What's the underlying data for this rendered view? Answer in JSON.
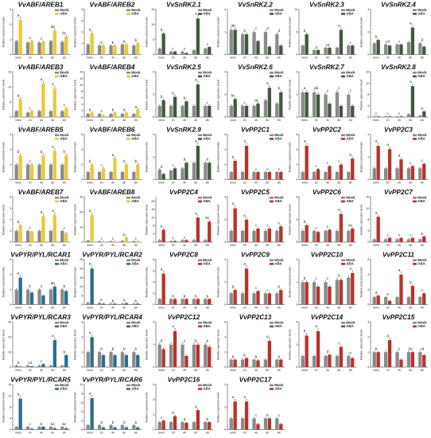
{
  "figure": {
    "y_axis_label": "Relative expression levels",
    "x_ticks": [
      "0min",
      "2h",
      "4h",
      "6h",
      "8h"
    ],
    "legend": [
      "Mock",
      "ABA"
    ]
  },
  "colors": {
    "mock": "#8a8a8a",
    "aba_yellow": "#e9c93a",
    "aba_darkgreen": "#3f5a3c",
    "aba_red": "#b8322e",
    "aba_blue": "#2a6e8e"
  },
  "chart_data": [
    {
      "type": "bar",
      "title": "VvABF/AREB1",
      "aba_color": "aba_yellow",
      "ymax": 3,
      "ticks": [
        0,
        1,
        2,
        3
      ],
      "mock": [
        0.9,
        0.8,
        0.8,
        0.9,
        0.85
      ],
      "aba": [
        2.3,
        0.9,
        0.85,
        1.6,
        1.2
      ],
      "letters": [
        "a",
        "c",
        "c",
        "ab",
        "bc"
      ]
    },
    {
      "type": "bar",
      "title": "VvABF/AREB2",
      "aba_color": "aba_yellow",
      "ymax": 4,
      "ticks": [
        0,
        1,
        2,
        3,
        4
      ],
      "mock": [
        0.9,
        0.8,
        0.8,
        0.9,
        0.8
      ],
      "aba": [
        1.9,
        0.8,
        0.8,
        0.9,
        1.0
      ],
      "letters": [
        "a",
        "b",
        "b",
        "b",
        "b"
      ]
    },
    {
      "type": "bar",
      "title": "VvSnRK2.1",
      "aba_color": "aba_darkgreen",
      "ymax": 15,
      "ticks": [
        0,
        5,
        10,
        15
      ],
      "mock": [
        2.0,
        1.0,
        1.0,
        1.5,
        2.0
      ],
      "aba": [
        7.0,
        1.0,
        0.5,
        12.0,
        2.5
      ],
      "letters": [
        "b",
        "c",
        "c",
        "a",
        "c"
      ]
    },
    {
      "type": "bar",
      "title": "VvSnRK2.2",
      "aba_color": "aba_darkgreen",
      "ymax": 2,
      "ticks": [
        0,
        1,
        2
      ],
      "mock": [
        1.1,
        0.9,
        1.0,
        1.0,
        0.9
      ],
      "aba": [
        1.1,
        0.9,
        0.6,
        0.35,
        0.4
      ],
      "letters": [
        "ab",
        "b",
        "c",
        "d",
        "d"
      ]
    },
    {
      "type": "bar",
      "title": "VvSnRK2.3",
      "aba_color": "aba_darkgreen",
      "ymax": 10,
      "ticks": [
        0,
        5,
        10
      ],
      "mock": [
        2.0,
        1.0,
        1.5,
        1.5,
        2.0
      ],
      "aba": [
        4.5,
        1.0,
        1.5,
        5.5,
        2.0
      ],
      "letters": [
        "b",
        "d",
        "cd",
        "a",
        "c"
      ]
    },
    {
      "type": "bar",
      "title": "VvSnRK2.4",
      "aba_color": "aba_darkgreen",
      "ymax": 4,
      "ticks": [
        0,
        2,
        4
      ],
      "mock": [
        1.0,
        0.9,
        0.9,
        1.1,
        1.0
      ],
      "aba": [
        1.3,
        0.8,
        0.9,
        2.4,
        0.7
      ],
      "letters": [
        "b",
        "cd",
        "c",
        "a",
        "d"
      ]
    },
    {
      "type": "bar",
      "title": "VvABF/AREB3",
      "aba_color": "aba_yellow",
      "ymax": 15,
      "ticks": [
        0,
        5,
        10,
        15
      ],
      "mock": [
        2.0,
        1.5,
        2.0,
        2.0,
        2.0
      ],
      "aba": [
        6.0,
        2.0,
        11.0,
        9.5,
        3.0
      ],
      "letters": [
        "b",
        "c",
        "a",
        "a",
        "c"
      ]
    },
    {
      "type": "bar",
      "title": "VvABF/AREB4",
      "aba_color": "aba_yellow",
      "ymax": 14,
      "ticks": [
        0,
        2,
        4,
        6,
        8,
        10,
        12,
        14
      ],
      "mock": [
        1.0,
        1.0,
        1.0,
        1.0,
        1.0
      ],
      "aba": [
        1.4,
        0.5,
        1.4,
        1.4,
        2.4
      ],
      "letters": [
        "b",
        "c",
        "b",
        "b",
        "a"
      ]
    },
    {
      "type": "bar",
      "title": "VvSnRK2.5",
      "aba_color": "aba_darkgreen",
      "ymax": 4,
      "ticks": [
        0,
        2,
        4
      ],
      "mock": [
        1.0,
        1.0,
        1.0,
        1.0,
        1.0
      ],
      "aba": [
        1.5,
        1.8,
        1.4,
        2.9,
        1.0
      ],
      "letters": [
        "b",
        "b",
        "b",
        "a",
        "c"
      ]
    },
    {
      "type": "bar",
      "title": "VvSnRK2.6",
      "aba_color": "aba_darkgreen",
      "ymax": 4,
      "ticks": [
        0,
        2,
        4
      ],
      "mock": [
        1.0,
        1.0,
        1.0,
        1.5,
        1.2
      ],
      "aba": [
        1.6,
        1.0,
        1.2,
        2.6,
        2.2
      ],
      "letters": [
        "bc",
        "c",
        "cd",
        "a",
        "b"
      ]
    },
    {
      "type": "bar",
      "title": "VvSnRK2.7",
      "aba_color": "aba_darkgreen",
      "ymax": 2,
      "ticks": [
        0,
        1,
        2
      ],
      "mock": [
        1.1,
        1.1,
        1.0,
        1.1,
        1.0
      ],
      "aba": [
        1.1,
        1.0,
        0.6,
        0.5,
        0.5
      ],
      "letters": [
        "a",
        "ab",
        "c",
        "c",
        "c"
      ]
    },
    {
      "type": "bar",
      "title": "VvSnRK2.8",
      "aba_color": "aba_darkgreen",
      "ymax": 16,
      "ticks": [
        0,
        4,
        8,
        12,
        16
      ],
      "mock": [
        0.2,
        0.2,
        0.2,
        1.0,
        0.5
      ],
      "aba": [
        0.2,
        0.2,
        0.2,
        11.0,
        2.0
      ],
      "letters": [
        "c",
        "c",
        "c",
        "a",
        "b"
      ]
    },
    {
      "type": "bar",
      "title": "VvABF/AREB5",
      "aba_color": "aba_yellow",
      "ymax": 3,
      "ticks": [
        0,
        1,
        2,
        3
      ],
      "mock": [
        1.0,
        1.0,
        1.0,
        1.0,
        1.0
      ],
      "aba": [
        1.6,
        1.0,
        1.6,
        1.9,
        1.6
      ],
      "letters": [
        "b",
        "c",
        "b",
        "a",
        "b"
      ]
    },
    {
      "type": "bar",
      "title": "VvABF/AREB6",
      "aba_color": "aba_yellow",
      "ymax": 6,
      "ticks": [
        0,
        2,
        4,
        6
      ],
      "mock": [
        1.0,
        1.0,
        1.0,
        1.0,
        1.0
      ],
      "aba": [
        2.0,
        1.5,
        2.8,
        2.0,
        2.0
      ],
      "letters": [
        "b",
        "c",
        "a",
        "b",
        "b"
      ]
    },
    {
      "type": "bar",
      "title": "VvSnRK2.9",
      "aba_color": "aba_darkgreen",
      "ymax": 4,
      "ticks": [
        0,
        2,
        4
      ],
      "mock": [
        0.9,
        0.8,
        1.0,
        1.5,
        1.5
      ],
      "aba": [
        0.5,
        1.0,
        1.5,
        3.0,
        1.5
      ],
      "letters": [
        "a",
        "c",
        "b",
        "a",
        "b"
      ]
    },
    {
      "type": "bar",
      "title": "VvPP2C1",
      "aba_color": "aba_red",
      "ymax": 6,
      "ticks": [
        0,
        2,
        4,
        6
      ],
      "mock": [
        1.0,
        1.0,
        1.0,
        1.0,
        1.0
      ],
      "aba": [
        2.5,
        4.5,
        1.0,
        1.0,
        1.0
      ],
      "letters": [
        "b",
        "a",
        "c",
        "c",
        "c"
      ]
    },
    {
      "type": "bar",
      "title": "VvPP2C2",
      "aba_color": "aba_red",
      "ymax": 6,
      "ticks": [
        0,
        2,
        4,
        6
      ],
      "mock": [
        1.0,
        1.0,
        1.0,
        1.0,
        1.0
      ],
      "aba": [
        4.5,
        1.4,
        1.8,
        2.0,
        2.8
      ],
      "letters": [
        "a",
        "c",
        "c",
        "c",
        "b"
      ]
    },
    {
      "type": "bar",
      "title": "VvPP2C3",
      "aba_color": "aba_red",
      "ymax": 4,
      "ticks": [
        0,
        2,
        4
      ],
      "mock": [
        1.0,
        1.0,
        1.0,
        1.0,
        1.0
      ],
      "aba": [
        3.0,
        2.7,
        1.8,
        1.2,
        1.4
      ],
      "letters": [
        "a",
        "a",
        "b",
        "c",
        "c"
      ]
    },
    {
      "type": "bar",
      "title": "VvABF/AREB7",
      "aba_color": "aba_yellow",
      "ymax": 4,
      "ticks": [
        0,
        1,
        2,
        3,
        4
      ],
      "mock": [
        1.0,
        1.0,
        1.0,
        1.0,
        1.0
      ],
      "aba": [
        1.5,
        0.9,
        2.3,
        2.4,
        0.8
      ],
      "letters": [
        "b",
        "c",
        "a",
        "a",
        "c"
      ]
    },
    {
      "type": "bar",
      "title": "VvABF/AREB8",
      "aba_color": "aba_yellow",
      "ymax": 30,
      "ticks": [
        0,
        10,
        20,
        30
      ],
      "mock": [
        1.0,
        0.5,
        0.5,
        0.8,
        0.5
      ],
      "aba": [
        18.0,
        0.3,
        0.3,
        3.0,
        0.3
      ],
      "letters": [
        "a",
        "c",
        "c",
        "b",
        "c"
      ]
    },
    {
      "type": "bar",
      "title": "VvPP2C4",
      "aba_color": "aba_red",
      "ymax": 22,
      "ticks": [
        0,
        4,
        8,
        12,
        16,
        20
      ],
      "mock": [
        1.0,
        0.5,
        1.0,
        1.0,
        1.0
      ],
      "aba": [
        6.0,
        0.5,
        1.0,
        12.0,
        10.0
      ],
      "letters": [
        "b",
        "c",
        "c",
        "a",
        "bc"
      ]
    },
    {
      "type": "bar",
      "title": "VvPP2C5",
      "aba_color": "aba_red",
      "ymax": 4,
      "ticks": [
        0,
        2,
        4
      ],
      "mock": [
        1.0,
        1.0,
        1.0,
        1.0,
        1.0
      ],
      "aba": [
        3.0,
        2.0,
        1.2,
        1.2,
        1.4
      ],
      "letters": [
        "a",
        "b",
        "c",
        "c",
        "c"
      ]
    },
    {
      "type": "bar",
      "title": "VvPP2C6",
      "aba_color": "aba_red",
      "ymax": 4,
      "ticks": [
        0,
        2,
        4
      ],
      "mock": [
        1.0,
        1.0,
        1.0,
        1.0,
        1.0
      ],
      "aba": [
        1.5,
        0.9,
        1.1,
        2.5,
        1.2
      ],
      "letters": [
        "b",
        "c",
        "c",
        "a",
        "bc"
      ]
    },
    {
      "type": "bar",
      "title": "VvPP2C7",
      "aba_color": "aba_red",
      "ymax": 16,
      "ticks": [
        0,
        4,
        8,
        12,
        16
      ],
      "mock": [
        1.0,
        1.0,
        1.0,
        1.0,
        1.0
      ],
      "aba": [
        9.0,
        1.5,
        1.5,
        1.5,
        2.0
      ],
      "letters": [
        "a",
        "c",
        "c",
        "c",
        "b"
      ]
    },
    {
      "type": "bar",
      "title": "VvPYR/PYL/RCAR1",
      "aba_color": "aba_blue",
      "ymax": 3,
      "ticks": [
        0,
        1,
        2,
        3
      ],
      "mock": [
        1.0,
        1.0,
        1.0,
        1.0,
        1.0
      ],
      "aba": [
        1.8,
        0.8,
        0.6,
        1.2,
        0.9
      ],
      "letters": [
        "a",
        "b",
        "c",
        "ab",
        "b"
      ]
    },
    {
      "type": "bar",
      "title": "VvPYR/PYL/RCAR2",
      "aba_color": "aba_blue",
      "ymax": 25,
      "ticks": [
        0,
        5,
        10,
        15,
        20,
        25
      ],
      "mock": [
        1.0,
        1.0,
        0.5,
        0.5,
        0.5
      ],
      "aba": [
        20.0,
        0.5,
        0.5,
        0.8,
        0.5
      ],
      "letters": [
        "a",
        "b",
        "b",
        "b",
        "b"
      ]
    },
    {
      "type": "bar",
      "title": "VvPP2C8",
      "aba_color": "aba_red",
      "ymax": 8,
      "ticks": [
        0,
        2,
        4,
        6,
        8
      ],
      "mock": [
        1.0,
        1.0,
        1.0,
        1.0,
        1.0
      ],
      "aba": [
        5.5,
        1.0,
        1.0,
        1.0,
        1.0
      ],
      "letters": [
        "a",
        "b",
        "b",
        "b",
        "b"
      ]
    },
    {
      "type": "bar",
      "title": "VvPP2C9",
      "aba_color": "aba_red",
      "ymax": 4,
      "ticks": [
        0,
        2,
        4
      ],
      "mock": [
        1.0,
        1.0,
        1.0,
        1.0,
        1.0
      ],
      "aba": [
        1.3,
        3.2,
        1.2,
        1.0,
        1.3
      ],
      "letters": [
        "b",
        "a",
        "c",
        "c",
        "b"
      ]
    },
    {
      "type": "bar",
      "title": "VvPP2C10",
      "aba_color": "aba_red",
      "ymax": 2,
      "ticks": [
        0,
        1,
        2
      ],
      "mock": [
        1.0,
        1.0,
        1.0,
        1.1,
        1.2
      ],
      "aba": [
        1.0,
        0.8,
        0.8,
        1.1,
        1.4
      ],
      "letters": [
        "b",
        "c",
        "c",
        "b",
        "a"
      ]
    },
    {
      "type": "bar",
      "title": "VvPP2C11",
      "aba_color": "aba_red",
      "ymax": 6,
      "ticks": [
        0,
        2,
        4,
        6
      ],
      "mock": [
        1.0,
        1.0,
        1.0,
        1.0,
        1.0
      ],
      "aba": [
        1.2,
        0.5,
        4.0,
        2.5,
        1.5
      ],
      "letters": [
        "d",
        "e",
        "a",
        "b",
        "c"
      ]
    },
    {
      "type": "bar",
      "title": "VvPYR/PYL/RCAR3",
      "aba_color": "aba_blue",
      "ymax": 30,
      "ticks": [
        0,
        10,
        20,
        30
      ],
      "mock": [
        1.0,
        1.0,
        1.0,
        1.0,
        1.0
      ],
      "aba": [
        0.3,
        0.5,
        2.0,
        18.0,
        8.0
      ],
      "letters": [
        "d",
        "cd",
        "c",
        "a",
        "b"
      ]
    },
    {
      "type": "bar",
      "title": "VvPYR/PYL/RCAR4",
      "aba_color": "aba_blue",
      "ymax": 3,
      "ticks": [
        0,
        1,
        2,
        3
      ],
      "mock": [
        1.0,
        1.0,
        1.0,
        1.0,
        1.0
      ],
      "aba": [
        2.0,
        0.8,
        0.8,
        0.8,
        0.8
      ],
      "letters": [
        "a",
        "b",
        "b",
        "b",
        "b"
      ]
    },
    {
      "type": "bar",
      "title": "VvPP2C12",
      "aba_color": "aba_red",
      "ymax": 2,
      "ticks": [
        0,
        1,
        2
      ],
      "mock": [
        1.0,
        1.0,
        1.0,
        1.0,
        1.0
      ],
      "aba": [
        0.8,
        1.6,
        0.5,
        1.0,
        0.9
      ],
      "letters": [
        "b",
        "a",
        "c",
        "b",
        "b"
      ]
    },
    {
      "type": "bar",
      "title": "VvPP2C13",
      "aba_color": "aba_red",
      "ymax": 6,
      "ticks": [
        0,
        2,
        4,
        6
      ],
      "mock": [
        1.0,
        1.0,
        1.0,
        1.0,
        1.0
      ],
      "aba": [
        1.0,
        1.2,
        0.9,
        3.5,
        1.0
      ],
      "letters": [
        "b",
        "b",
        "b",
        "a",
        "b"
      ]
    },
    {
      "type": "bar",
      "title": "VvPP2C14",
      "aba_color": "aba_red",
      "ymax": 4,
      "ticks": [
        0,
        2,
        4
      ],
      "mock": [
        1.0,
        1.0,
        1.0,
        1.0,
        1.0
      ],
      "aba": [
        2.8,
        3.2,
        1.1,
        1.8,
        0.8
      ],
      "letters": [
        "b",
        "a",
        "d",
        "c",
        "e"
      ]
    },
    {
      "type": "bar",
      "title": "VvPP2C15",
      "aba_color": "aba_red",
      "ymax": 3,
      "ticks": [
        0,
        1,
        2,
        3
      ],
      "mock": [
        1.0,
        1.0,
        1.0,
        1.0,
        1.0
      ],
      "aba": [
        1.0,
        1.8,
        0.5,
        1.0,
        0.8
      ],
      "letters": [
        "b",
        "a",
        "c",
        "bc",
        "cd"
      ]
    },
    {
      "type": "bar",
      "title": "VvPYR/PYL/RCAR5",
      "aba_color": "aba_blue",
      "ymax": 16,
      "ticks": [
        0,
        4,
        8,
        12,
        16
      ],
      "mock": [
        1.0,
        1.0,
        1.0,
        1.0,
        1.0
      ],
      "aba": [
        11.0,
        0.3,
        1.0,
        0.5,
        0.5
      ],
      "letters": [
        "a",
        "c",
        "b",
        "bc",
        "bc"
      ]
    },
    {
      "type": "bar",
      "title": "VvPYR/PYL/RCAR6",
      "aba_color": "aba_blue",
      "ymax": 10,
      "ticks": [
        0,
        2,
        4,
        6,
        8,
        10
      ],
      "mock": [
        1.0,
        1.0,
        1.0,
        1.0,
        1.0
      ],
      "aba": [
        7.0,
        0.5,
        0.5,
        0.5,
        0.5
      ],
      "letters": [
        "a",
        "b",
        "b",
        "b",
        "b"
      ]
    },
    {
      "type": "bar",
      "title": "VvPP2C16",
      "aba_color": "aba_red",
      "ymax": 6,
      "ticks": [
        0,
        2,
        4,
        6
      ],
      "mock": [
        1.0,
        1.0,
        1.0,
        1.0,
        1.0
      ],
      "aba": [
        1.2,
        1.8,
        0.9,
        2.6,
        1.0
      ],
      "letters": [
        "c",
        "b",
        "d",
        "a",
        "b"
      ]
    },
    {
      "type": "bar",
      "title": "VvPP2C17",
      "aba_color": "aba_red",
      "ymax": 4,
      "ticks": [
        0,
        2,
        4
      ],
      "mock": [
        1.0,
        1.0,
        1.0,
        1.0,
        1.0
      ],
      "aba": [
        2.5,
        2.5,
        0.5,
        1.0,
        0.5
      ],
      "letters": [
        "a",
        "a",
        "c",
        "b",
        "c"
      ]
    }
  ]
}
